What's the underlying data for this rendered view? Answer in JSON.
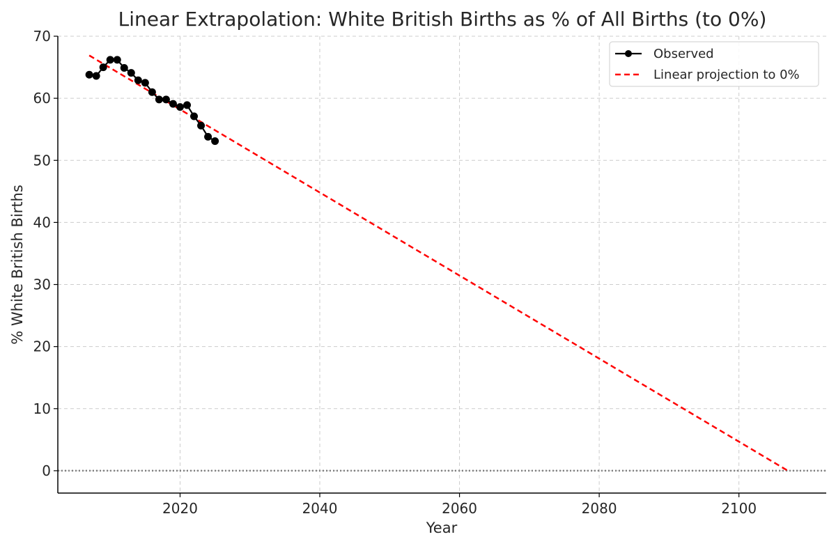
{
  "chart_data": {
    "type": "line",
    "title": "Linear Extrapolation: White British Births as % of All Births (to 0%)",
    "xlabel": "Year",
    "ylabel": "% White British Births",
    "xlim": [
      2002.5,
      2112.5
    ],
    "ylim": [
      -3.6,
      70
    ],
    "xticks": [
      2020,
      2040,
      2060,
      2080,
      2100
    ],
    "yticks": [
      0,
      10,
      20,
      30,
      40,
      50,
      60,
      70
    ],
    "grid": true,
    "legend_position": "top-right",
    "reference_line": {
      "y": 0,
      "style": "dotted",
      "color": "#808080"
    },
    "series": [
      {
        "name": "Observed",
        "style": "solid-with-markers",
        "color": "#000000",
        "x": [
          2007,
          2008,
          2009,
          2010,
          2011,
          2012,
          2013,
          2014,
          2015,
          2016,
          2017,
          2018,
          2019,
          2020,
          2021,
          2022,
          2023,
          2024,
          2025
        ],
        "y": [
          63.8,
          63.6,
          65.0,
          66.2,
          66.2,
          64.9,
          64.1,
          62.9,
          62.5,
          61.0,
          59.8,
          59.8,
          59.1,
          58.6,
          58.9,
          57.1,
          55.6,
          53.8,
          53.1
        ]
      },
      {
        "name": "Linear projection to 0%",
        "style": "dashed",
        "color": "#ff0000",
        "x": [
          2007,
          2107
        ],
        "y": [
          66.9,
          0
        ]
      }
    ]
  }
}
